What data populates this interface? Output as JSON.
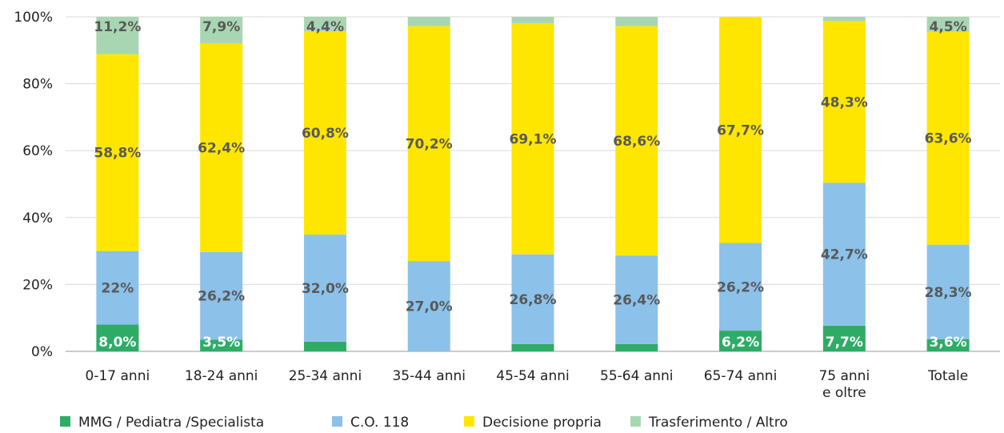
{
  "chart_data": {
    "type": "bar",
    "stacked": true,
    "categories": [
      "0-17 anni",
      "18-24 anni",
      "25-34 anni",
      "35-44 anni",
      "45-54 anni",
      "55-64 anni",
      "65-74 anni",
      "75 anni\ne oltre",
      "Totale"
    ],
    "series": [
      {
        "name": "MMG / Pediatra /Specialista",
        "color": "#2eac66",
        "values": [
          8.0,
          3.5,
          2.9,
          0.0,
          2.2,
          2.2,
          6.2,
          7.7,
          3.6
        ],
        "labels": [
          "8,0%",
          "3,5%",
          "",
          "",
          "",
          "",
          "6,2%",
          "7,7%",
          "3,6%"
        ]
      },
      {
        "name": "C.O. 118",
        "color": "#8cc1e9",
        "values": [
          22.0,
          26.2,
          32.0,
          27.0,
          26.8,
          26.4,
          26.2,
          42.7,
          28.3
        ],
        "labels": [
          "22%",
          "26,2%",
          "32,0%",
          "27,0%",
          "26,8%",
          "26,4%",
          "26,2%",
          "42,7%",
          "28,3%"
        ]
      },
      {
        "name": "Decisione propria",
        "color": "#ffe600",
        "values": [
          58.8,
          62.4,
          60.8,
          70.2,
          69.1,
          68.6,
          67.7,
          48.3,
          63.6
        ],
        "labels": [
          "58,8%",
          "62,4%",
          "60,8%",
          "70,2%",
          "69,1%",
          "68,6%",
          "67,7%",
          "48,3%",
          "63,6%"
        ]
      },
      {
        "name": "Trasferimento / Altro",
        "color": "#a9d6b2",
        "values": [
          11.2,
          7.9,
          4.4,
          2.8,
          1.9,
          2.8,
          0.0,
          1.3,
          4.5
        ],
        "labels": [
          "11,2%",
          "7,9%",
          "4,4%",
          "",
          "",
          "",
          "",
          "",
          "4,5%"
        ]
      }
    ],
    "yticks": [
      "0%",
      "20%",
      "40%",
      "60%",
      "80%",
      "100%"
    ],
    "ylim": [
      0,
      100
    ],
    "grid": true,
    "legend": "bottom",
    "title": "",
    "xlabel": "",
    "ylabel": ""
  }
}
